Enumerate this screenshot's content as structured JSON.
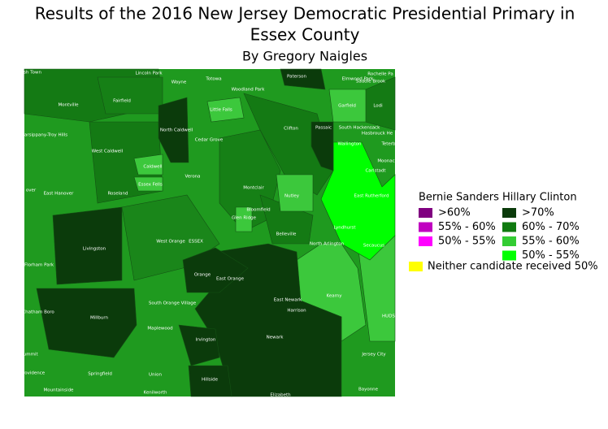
{
  "title": [
    "Results of the 2016 New Jersey Democratic Presidential Primary in",
    "Essex County"
  ],
  "subtitle": "By Gregory Naigles",
  "legend": {
    "bernie": {
      "heading": "Bernie Sanders",
      "items": [
        {
          "label": ">60%",
          "color": "#800080"
        },
        {
          "label": "55% - 60%",
          "color": "#c000c0"
        },
        {
          "label": "50% - 55%",
          "color": "#ff00ff"
        }
      ]
    },
    "clinton": {
      "heading": "Hillary Clinton",
      "items": [
        {
          "label": ">70%",
          "color": "#0b3b0b"
        },
        {
          "label": "60% - 70%",
          "color": "#0f7a0f"
        },
        {
          "label": "55% - 60%",
          "color": "#33cc33"
        },
        {
          "label": "50% - 55%",
          "color": "#00ff00"
        }
      ]
    },
    "neither": {
      "label": "Neither candidate received 50%",
      "color": "#ffff00"
    }
  },
  "towns": [
    "sh Town",
    "Lincoln Park",
    "Paterson",
    "Elmwood Park",
    "Rochelle Pa",
    "Saddle Brook",
    "Wayne",
    "Totowa",
    "Woodland Park",
    "Montville",
    "Fairfield",
    "Garfield",
    "Lodi",
    "Little Falls",
    "North Caldwell",
    "Clifton",
    "Passaic",
    "South Hackensack",
    "Hasbrouck He",
    "Parsippany-Troy Hills",
    "Wallington",
    "Cedar Grove",
    "Teterb",
    "West Caldwell",
    "Moonac",
    "Caldwell",
    "Carlstadt",
    "Verona",
    "Essex Fells",
    "Montclair",
    "East Hanover",
    "Roseland",
    "Nutley",
    "East Rutherford",
    "over",
    "Bloomfield",
    "Glen Ridge",
    "Belleville",
    "Lyndhurst",
    "North Arlington",
    "Livingston",
    "West Orange",
    "ESSEX",
    "Secaucus",
    "Florham Park",
    "Orange",
    "East Orange",
    "South Orange Village",
    "East Newark",
    "Kearny",
    "Harrison",
    "Chatham Boro",
    "Millburn",
    "HUDS",
    "Maplewood",
    "Newark",
    "Irvington",
    "Summit",
    "Jersey City",
    "Providence",
    "Springfield",
    "Union",
    "Hillside",
    "Mountainside",
    "Kenilworth",
    "Elizabeth",
    "Bayonne"
  ]
}
